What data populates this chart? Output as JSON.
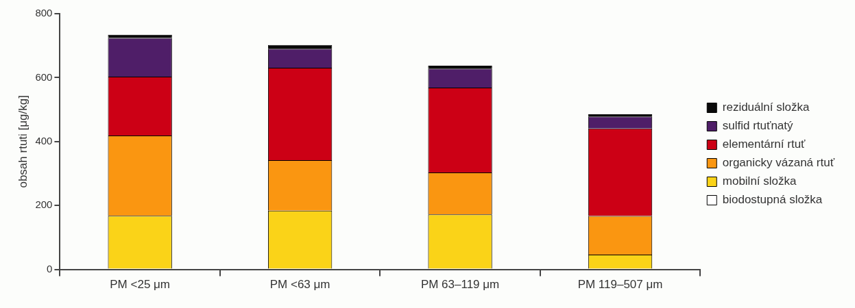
{
  "chart_data": {
    "type": "bar",
    "stacked": true,
    "ylabel": "obsah rtuti [μg/kg]",
    "categories": [
      "PM <25 μm",
      "PM <63 μm",
      "PM 63–119 μm",
      "PM 119–507 μm"
    ],
    "series": [
      {
        "name": "biodostupná složka",
        "color": "#ffffff",
        "values": [
          0,
          0,
          0,
          0
        ]
      },
      {
        "name": "mobilní složka",
        "color": "#fad318",
        "values": [
          168,
          184,
          172,
          46
        ]
      },
      {
        "name": "organicky vázaná rtuť",
        "color": "#fa9611",
        "values": [
          251,
          158,
          131,
          121
        ]
      },
      {
        "name": "elementární rtuť",
        "color": "#cc0015",
        "values": [
          184,
          289,
          266,
          274
        ]
      },
      {
        "name": "sulfid rtuťnatý",
        "color": "#4f1e68",
        "values": [
          121,
          59,
          59,
          37
        ]
      },
      {
        "name": "reziduální složka",
        "color": "#0a0a0a",
        "values": [
          10,
          12,
          9,
          7
        ]
      }
    ],
    "ylim": [
      0,
      800
    ],
    "yticks": [
      0,
      200,
      400,
      600,
      800
    ],
    "grid": false,
    "legend": "right"
  }
}
